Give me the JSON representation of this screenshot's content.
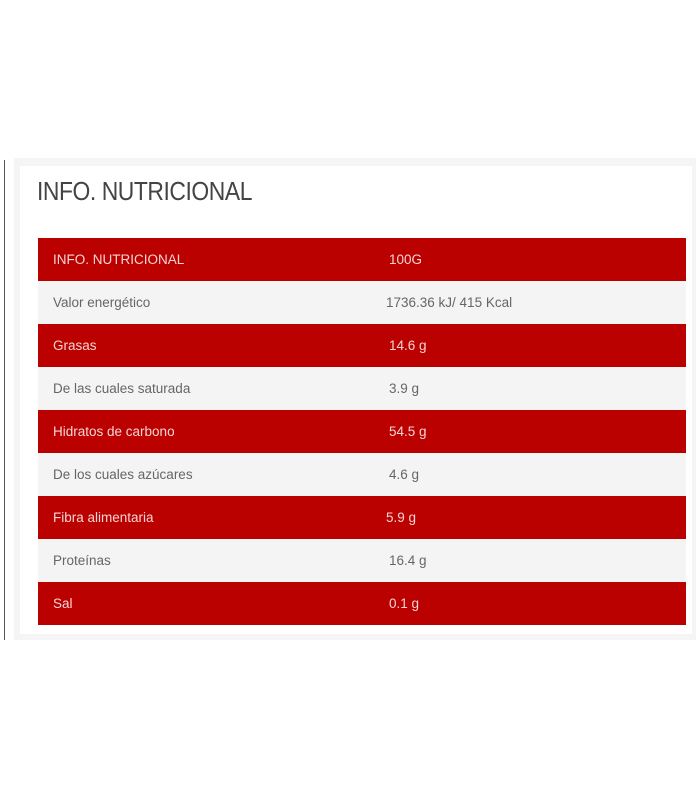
{
  "title": "INFO. NUTRICIONAL",
  "colors": {
    "red": "#bb0000",
    "grey": "#f4f4f4"
  },
  "table": {
    "rows": [
      {
        "label": "INFO. NUTRICIONAL",
        "value": "100G"
      },
      {
        "label": "Valor energético",
        "value": "1736.36 kJ/ 415 Kcal"
      },
      {
        "label": "Grasas",
        "value": "14.6 g"
      },
      {
        "label": "De las cuales saturada",
        "value": "3.9 g"
      },
      {
        "label": "Hidratos de carbono",
        "value": "54.5 g"
      },
      {
        "label": "De los cuales azúcares",
        "value": "4.6 g"
      },
      {
        "label": "Fibra alimentaria",
        "value": "5.9 g"
      },
      {
        "label": "Proteínas",
        "value": "16.4 g"
      },
      {
        "label": "Sal",
        "value": "0.1 g"
      }
    ]
  }
}
